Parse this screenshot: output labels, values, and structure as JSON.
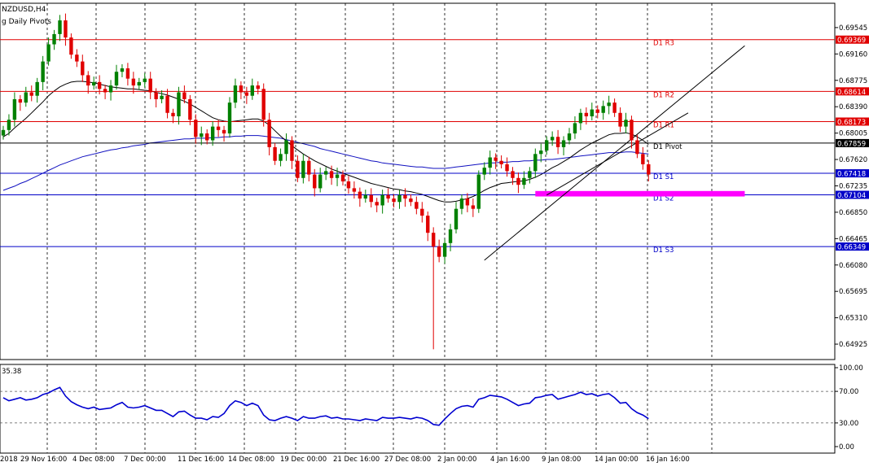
{
  "chart_data": {
    "type": "candlestick",
    "symbol_label": "NZDUSD,H4",
    "indicator_label": "g Daily Pivots",
    "price_axis": {
      "range": [
        0.647,
        0.699
      ],
      "ticks": [
        "0.69545",
        "0.69160",
        "0.68775",
        "0.68390",
        "0.68005",
        "0.67620",
        "0.67235",
        "0.66850",
        "0.66465",
        "0.66080",
        "0.65695",
        "0.65310",
        "0.64925"
      ]
    },
    "pivot_levels": [
      {
        "name": "D1 R3",
        "value": "0.69369",
        "price": 0.69369,
        "color": "#e00000"
      },
      {
        "name": "D1 R2",
        "value": "0.68614",
        "price": 0.68614,
        "color": "#e00000"
      },
      {
        "name": "D1 R1",
        "value": "0.68173",
        "price": 0.68173,
        "color": "#e00000"
      },
      {
        "name": "D1 Pivot",
        "value": "0.67859",
        "price": 0.67859,
        "color": "#000000"
      },
      {
        "name": "D1 S1",
        "value": "0.67418",
        "price": 0.67418,
        "color": "#0000c8"
      },
      {
        "name": "D1 S2",
        "value": "0.67104",
        "price": 0.67104,
        "color": "#0000c8"
      },
      {
        "name": "D1 S3",
        "value": "0.66349",
        "price": 0.66349,
        "color": "#0000c8"
      }
    ],
    "x_labels": [
      "2018",
      "29 Nov 16:00",
      "4 Dec 08:00",
      "7 Dec 00:00",
      "11 Dec 16:00",
      "14 Dec 08:00",
      "19 Dec 00:00",
      "21 Dec 16:00",
      "27 Dec 08:00",
      "2 Jan 00:00",
      "4 Jan 16:00",
      "9 Jan 08:00",
      "14 Jan 00:00",
      "16 Jan 16:00"
    ],
    "closes": [
      0.6805,
      0.682,
      0.685,
      0.6845,
      0.686,
      0.6855,
      0.6875,
      0.6905,
      0.693,
      0.6945,
      0.6965,
      0.694,
      0.6915,
      0.6905,
      0.6885,
      0.687,
      0.6875,
      0.6865,
      0.686,
      0.687,
      0.689,
      0.6895,
      0.688,
      0.687,
      0.6875,
      0.688,
      0.686,
      0.685,
      0.6855,
      0.683,
      0.6825,
      0.686,
      0.685,
      0.682,
      0.6795,
      0.68,
      0.679,
      0.681,
      0.6805,
      0.68,
      0.6845,
      0.687,
      0.686,
      0.6855,
      0.687,
      0.6865,
      0.682,
      0.678,
      0.676,
      0.677,
      0.679,
      0.676,
      0.6735,
      0.676,
      0.674,
      0.672,
      0.674,
      0.6745,
      0.6735,
      0.674,
      0.673,
      0.672,
      0.6715,
      0.6705,
      0.671,
      0.67,
      0.6695,
      0.671,
      0.6705,
      0.67,
      0.671,
      0.6705,
      0.67,
      0.669,
      0.668,
      0.6655,
      0.6635,
      0.662,
      0.664,
      0.666,
      0.669,
      0.6705,
      0.6695,
      0.669,
      0.674,
      0.675,
      0.6765,
      0.676,
      0.6755,
      0.6745,
      0.6735,
      0.6725,
      0.6735,
      0.6745,
      0.677,
      0.6775,
      0.679,
      0.6795,
      0.678,
      0.679,
      0.68,
      0.6815,
      0.683,
      0.6825,
      0.6835,
      0.683,
      0.684,
      0.6845,
      0.683,
      0.681,
      0.682,
      0.679,
      0.677,
      0.6755,
      0.674
    ],
    "sma_fast": [
      0.6795,
      0.68,
      0.6808,
      0.6815,
      0.6822,
      0.683,
      0.6838,
      0.6846,
      0.6855,
      0.6862,
      0.6868,
      0.6872,
      0.6875,
      0.6876,
      0.6876,
      0.6875,
      0.6874,
      0.6872,
      0.687,
      0.6868,
      0.6867,
      0.6866,
      0.6865,
      0.6865,
      0.6864,
      0.6863,
      0.6862,
      0.686,
      0.6858,
      0.6856,
      0.6853,
      0.685,
      0.6847,
      0.6843,
      0.6838,
      0.6833,
      0.6828,
      0.6823,
      0.682,
      0.6818,
      0.6817,
      0.6818,
      0.6819,
      0.682,
      0.6821,
      0.6821,
      0.6818,
      0.6812,
      0.6804,
      0.6796,
      0.6789,
      0.6782,
      0.6776,
      0.677,
      0.6765,
      0.676,
      0.6756,
      0.6752,
      0.6748,
      0.6745,
      0.6742,
      0.6739,
      0.6736,
      0.6733,
      0.673,
      0.6727,
      0.6725,
      0.6723,
      0.6721,
      0.6719,
      0.6718,
      0.6716,
      0.6715,
      0.6713,
      0.6711,
      0.6708,
      0.6705,
      0.6702,
      0.67,
      0.67,
      0.6701,
      0.6703,
      0.6705,
      0.6708,
      0.6712,
      0.6717,
      0.6721,
      0.6724,
      0.6727,
      0.6728,
      0.6729,
      0.673,
      0.6731,
      0.6733,
      0.6736,
      0.674,
      0.6745,
      0.675,
      0.6754,
      0.6759,
      0.6764,
      0.677,
      0.6776,
      0.6781,
      0.6786,
      0.679,
      0.6794,
      0.6798,
      0.68,
      0.68,
      0.6801,
      0.6799,
      0.6795,
      0.679,
      0.6784
    ],
    "sma_slow": [
      0.6717,
      0.672,
      0.6723,
      0.6727,
      0.673,
      0.6734,
      0.6738,
      0.6742,
      0.6746,
      0.675,
      0.6754,
      0.6757,
      0.676,
      0.6763,
      0.6766,
      0.6768,
      0.677,
      0.6772,
      0.6774,
      0.6776,
      0.6777,
      0.6779,
      0.678,
      0.6782,
      0.6783,
      0.6784,
      0.6786,
      0.6787,
      0.6788,
      0.6789,
      0.679,
      0.6791,
      0.6792,
      0.6792,
      0.6793,
      0.6793,
      0.6793,
      0.6794,
      0.6794,
      0.6795,
      0.6795,
      0.6796,
      0.6796,
      0.6797,
      0.6797,
      0.6797,
      0.6796,
      0.6795,
      0.6794,
      0.6793,
      0.6791,
      0.6789,
      0.6787,
      0.6785,
      0.6783,
      0.6781,
      0.6778,
      0.6776,
      0.6774,
      0.6772,
      0.677,
      0.6768,
      0.6766,
      0.6764,
      0.6762,
      0.676,
      0.6759,
      0.6757,
      0.6756,
      0.6755,
      0.6754,
      0.6753,
      0.6752,
      0.6751,
      0.6751,
      0.675,
      0.6749,
      0.6749,
      0.6749,
      0.675,
      0.6751,
      0.6752,
      0.6753,
      0.6754,
      0.6755,
      0.6756,
      0.6757,
      0.6757,
      0.6758,
      0.6758,
      0.6759,
      0.6759,
      0.676,
      0.676,
      0.6761,
      0.6761,
      0.6762,
      0.6762,
      0.6763,
      0.6764,
      0.6765,
      0.6766,
      0.6767,
      0.6768,
      0.6769,
      0.677,
      0.6771,
      0.6772,
      0.6772,
      0.6772,
      0.6773,
      0.6773,
      0.6772,
      0.6771,
      0.677
    ],
    "trendlines": [
      {
        "from": {
          "i": 85,
          "p": 0.6615
        },
        "to": {
          "i": 131,
          "p": 0.6928
        }
      },
      {
        "from": {
          "i": 96,
          "p": 0.671
        },
        "to": {
          "i": 121,
          "p": 0.683
        }
      }
    ],
    "zone": {
      "color": "#ff00ff",
      "from_price": 0.6708,
      "to_price": 0.6716,
      "from_i": 94,
      "to_i": 131
    },
    "rsi": {
      "value_label": "35.38",
      "axis_ticks": [
        "100.00",
        "70.00",
        "30.00",
        "0.00"
      ],
      "levels": [
        70,
        30
      ],
      "values": [
        62,
        58,
        60,
        62,
        59,
        60,
        62,
        66,
        68,
        72,
        75,
        64,
        57,
        53,
        50,
        48,
        50,
        47,
        48,
        49,
        53,
        56,
        50,
        49,
        50,
        52,
        49,
        46,
        46,
        42,
        38,
        44,
        45,
        40,
        36,
        36,
        34,
        38,
        37,
        42,
        52,
        58,
        56,
        52,
        55,
        52,
        40,
        34,
        33,
        36,
        38,
        36,
        33,
        38,
        36,
        36,
        38,
        39,
        36,
        37,
        35,
        35,
        34,
        33,
        35,
        34,
        33,
        37,
        36,
        36,
        37,
        36,
        35,
        37,
        36,
        33,
        28,
        27,
        35,
        42,
        48,
        51,
        52,
        50,
        60,
        62,
        65,
        64,
        63,
        60,
        56,
        52,
        54,
        55,
        62,
        63,
        65,
        66,
        60,
        62,
        64,
        66,
        69,
        66,
        67,
        64,
        66,
        67,
        62,
        55,
        56,
        48,
        43,
        40,
        35.38
      ]
    }
  }
}
